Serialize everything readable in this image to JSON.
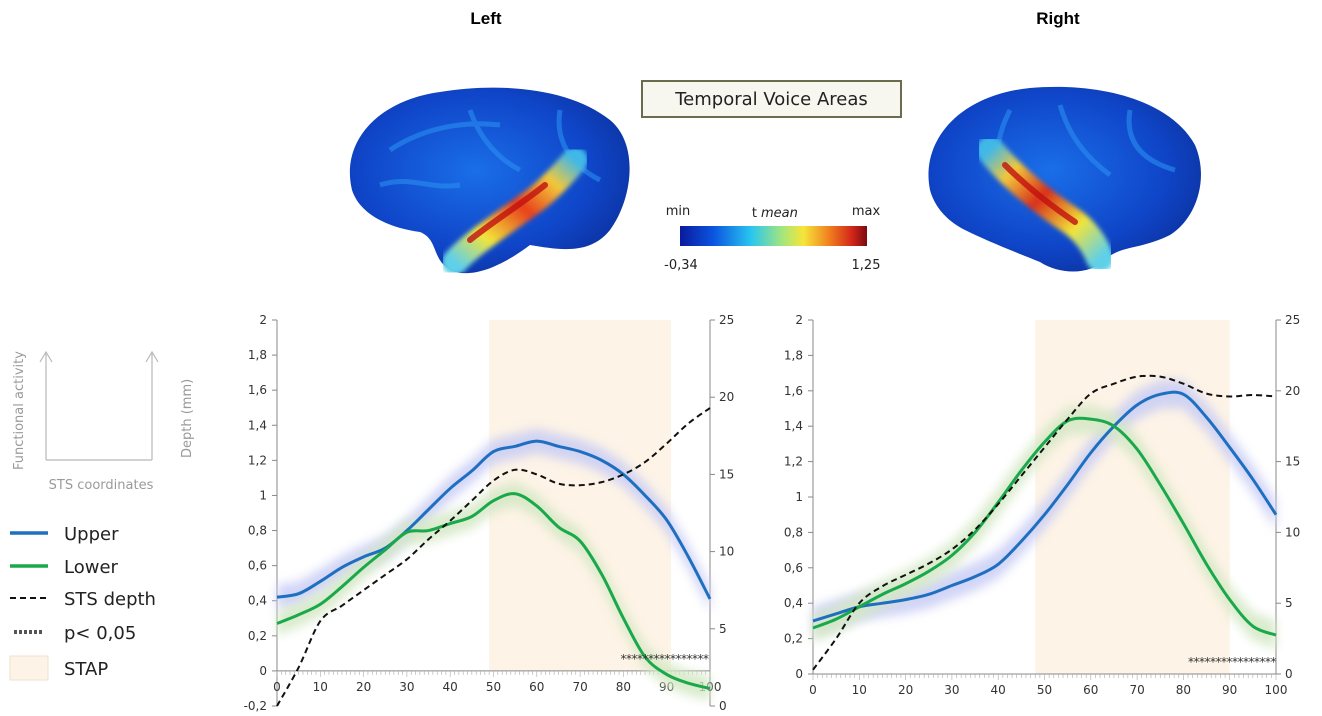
{
  "titles": {
    "left": "Left",
    "right": "Right"
  },
  "tva_label": "Temporal Voice Areas",
  "colorbar": {
    "min_label": "min",
    "max_label": "max",
    "t_label": "t",
    "mean_label": "mean",
    "min_value": "-0,34",
    "max_value": "1,25"
  },
  "schema": {
    "y_left": "Functional activity",
    "y_right": "Depth (mm)",
    "x": "STS coordinates"
  },
  "legend": {
    "upper": "Upper",
    "lower": "Lower",
    "depth": "STS depth",
    "pval": "p< 0,05",
    "stap": "STAP"
  },
  "colors": {
    "upper": "#1f6fc0",
    "lower": "#19a84a",
    "upper_band": "#c9cdf5",
    "lower_band": "#d4e8c4",
    "stap": "#fdf3e6",
    "depth": "#111111"
  },
  "chart_data": [
    {
      "type": "line",
      "panel": "Left",
      "xlim": [
        0,
        100
      ],
      "ylim": [
        -0.2,
        2
      ],
      "y2lim": [
        0,
        25
      ],
      "x_ticks": [
        "0",
        "10",
        "20",
        "30",
        "40",
        "50",
        "60",
        "70",
        "80",
        "90",
        "100"
      ],
      "y_ticks": [
        "-0,2",
        "0",
        "0,2",
        "0,4",
        "0,6",
        "0,8",
        "1",
        "1,2",
        "1,4",
        "1,6",
        "1,8",
        "2"
      ],
      "y2_ticks": [
        "0",
        "5",
        "10",
        "15",
        "20",
        "25"
      ],
      "stap_range": [
        49,
        91
      ],
      "significance_range": [
        80,
        99
      ],
      "significance_label": "****************",
      "x": [
        0,
        5,
        10,
        15,
        20,
        25,
        30,
        35,
        40,
        45,
        50,
        55,
        60,
        65,
        70,
        75,
        80,
        85,
        90,
        95,
        100
      ],
      "series": [
        {
          "name": "Upper",
          "axis": "left",
          "values": [
            0.42,
            0.44,
            0.51,
            0.59,
            0.65,
            0.7,
            0.8,
            0.92,
            1.04,
            1.14,
            1.25,
            1.28,
            1.31,
            1.28,
            1.25,
            1.2,
            1.12,
            1.0,
            0.86,
            0.65,
            0.41
          ]
        },
        {
          "name": "Lower",
          "axis": "left",
          "values": [
            0.27,
            0.32,
            0.38,
            0.48,
            0.59,
            0.69,
            0.79,
            0.8,
            0.84,
            0.88,
            0.97,
            1.01,
            0.94,
            0.82,
            0.74,
            0.55,
            0.3,
            0.08,
            -0.02,
            -0.07,
            -0.1
          ]
        },
        {
          "name": "STS depth",
          "axis": "right",
          "values": [
            0,
            2.5,
            5.5,
            6.5,
            7.5,
            8.5,
            9.5,
            10.8,
            12.0,
            13.3,
            14.6,
            15.3,
            15.0,
            14.4,
            14.3,
            14.5,
            15.0,
            15.8,
            17.0,
            18.3,
            19.3
          ]
        }
      ],
      "band_halfwidth": {
        "Upper": 0.07,
        "Lower": 0.07
      }
    },
    {
      "type": "line",
      "panel": "Right",
      "xlim": [
        0,
        100
      ],
      "ylim": [
        0,
        2
      ],
      "y2lim": [
        0,
        25
      ],
      "x_ticks": [
        "0",
        "10",
        "20",
        "30",
        "40",
        "50",
        "60",
        "70",
        "80",
        "90",
        "100"
      ],
      "y_ticks": [
        "0",
        "0,2",
        "0,4",
        "0,6",
        "0,8",
        "1",
        "1,2",
        "1,4",
        "1,6",
        "1,8",
        "2"
      ],
      "y2_ticks": [
        "0",
        "5",
        "10",
        "15",
        "20",
        "25"
      ],
      "stap_range": [
        48,
        90
      ],
      "significance_range": [
        81,
        100
      ],
      "significance_label": "****************",
      "x": [
        0,
        5,
        10,
        15,
        20,
        25,
        30,
        35,
        40,
        45,
        50,
        55,
        60,
        65,
        70,
        75,
        80,
        85,
        90,
        95,
        100
      ],
      "series": [
        {
          "name": "Upper",
          "axis": "left",
          "values": [
            0.3,
            0.34,
            0.38,
            0.4,
            0.42,
            0.45,
            0.5,
            0.55,
            0.62,
            0.75,
            0.9,
            1.07,
            1.25,
            1.4,
            1.52,
            1.58,
            1.58,
            1.45,
            1.28,
            1.1,
            0.9
          ]
        },
        {
          "name": "Lower",
          "axis": "left",
          "values": [
            0.26,
            0.31,
            0.38,
            0.45,
            0.51,
            0.58,
            0.67,
            0.8,
            0.97,
            1.15,
            1.31,
            1.43,
            1.44,
            1.4,
            1.27,
            1.07,
            0.85,
            0.62,
            0.42,
            0.27,
            0.22
          ]
        },
        {
          "name": "STS depth",
          "axis": "right",
          "values": [
            0.3,
            2.5,
            5.0,
            6.2,
            7.0,
            7.8,
            8.8,
            10.2,
            12.0,
            14.0,
            16.0,
            18.0,
            19.8,
            20.5,
            21.0,
            21.0,
            20.5,
            19.8,
            19.6,
            19.7,
            19.6
          ]
        }
      ],
      "band_halfwidth": {
        "Upper": 0.08,
        "Lower": 0.08
      }
    }
  ]
}
